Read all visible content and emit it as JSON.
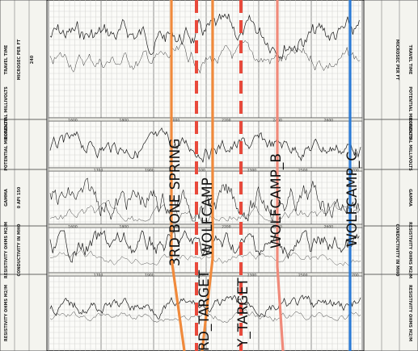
{
  "left_headers": [
    {
      "id": "travel-time",
      "lines": [
        "TRAVEL TIME",
        "MICROSEC PER FT",
        "240"
      ]
    },
    {
      "id": "potential-sp-1",
      "lines": [
        "POTENTIAL MILLIVOLTS"
      ]
    },
    {
      "id": "gamma",
      "lines": [
        "GAMMA",
        "0 API 150"
      ]
    },
    {
      "id": "resistivity-deep",
      "lines": [
        "RESISTIVITY OHMS M2/M",
        "CONDUCTIVITY IN MHO"
      ]
    },
    {
      "id": "resistivity-shallow",
      "lines": [
        "RESISTIVITY OHMS M2/M"
      ]
    },
    {
      "id": "potential-sp-2",
      "lines": [
        "POTENTIAL MILLIVOLTS"
      ]
    }
  ],
  "right_headers": [
    {
      "id": "travel-time-r",
      "lines": [
        "TRAVEL TIME",
        "MICROSEC PER FT"
      ]
    },
    {
      "id": "potential-r",
      "lines": [
        "POTENTIAL MILLIVOLTS"
      ]
    },
    {
      "id": "gamma-r",
      "lines": [
        "GAMMA"
      ]
    },
    {
      "id": "resistivity-r",
      "lines": [
        "RESISTIVITY OHMS M2/M",
        "CONDUCTIVITY IN MHO"
      ]
    },
    {
      "id": "resistivity-r2",
      "lines": [
        "RESISTIVITY OHMS M2/M"
      ]
    },
    {
      "id": "potential-r2",
      "lines": [
        "POTENTIAL MILLIVOLTS"
      ]
    }
  ],
  "depth_marks": [
    "1600",
    "1700",
    "1800",
    "1900",
    "2000",
    "2100",
    "2200",
    "2300",
    "2400",
    "2500",
    "2600",
    "2700"
  ],
  "formation_tops": [
    {
      "id": "3rd-bone-spring",
      "label": "3RD BONE SPRING",
      "color": "#f08a3c",
      "style": "solid"
    },
    {
      "id": "rd-target",
      "label": "RD_TARGET",
      "color": "#f08a3c",
      "style": "solid"
    },
    {
      "id": "wolfcamp",
      "label": "WOLFCAMP",
      "color": "#e84a3c",
      "style": "dashed"
    },
    {
      "id": "y-target",
      "label": "Y_TARGET",
      "color": "#e84a3c",
      "style": "dashed"
    },
    {
      "id": "wolfcamp-b",
      "label": "WOLFCAMP_B",
      "color": "#f08a7a",
      "style": "solid"
    },
    {
      "id": "wolfcamp-c",
      "label": "WOLFCAMP_C",
      "color": "#2b7bd6",
      "style": "solid"
    }
  ]
}
